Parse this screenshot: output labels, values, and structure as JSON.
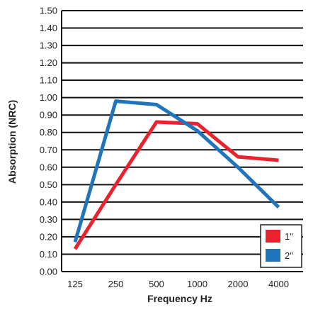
{
  "chart_data": {
    "type": "line",
    "xlabel": "Frequency Hz",
    "ylabel": "Absorption (NRC)",
    "categories": [
      "125",
      "250",
      "500",
      "1000",
      "2000",
      "4000"
    ],
    "ylim": [
      0,
      1.5
    ],
    "yticks": [
      "0.00",
      "0.10",
      "0.20",
      "0.30",
      "0.40",
      "0.50",
      "0.60",
      "0.70",
      "0.80",
      "0.90",
      "1.00",
      "1.10",
      "1.20",
      "1.30",
      "1.40",
      "1.50"
    ],
    "grid": true,
    "legend_position": "bottom-right",
    "series": [
      {
        "name": "1\"",
        "color": "#e8232f",
        "values": [
          0.13,
          0.5,
          0.86,
          0.85,
          0.66,
          0.64
        ]
      },
      {
        "name": "2\"",
        "color": "#1f74bb",
        "values": [
          0.17,
          0.98,
          0.96,
          0.81,
          0.6,
          0.37
        ]
      }
    ]
  }
}
